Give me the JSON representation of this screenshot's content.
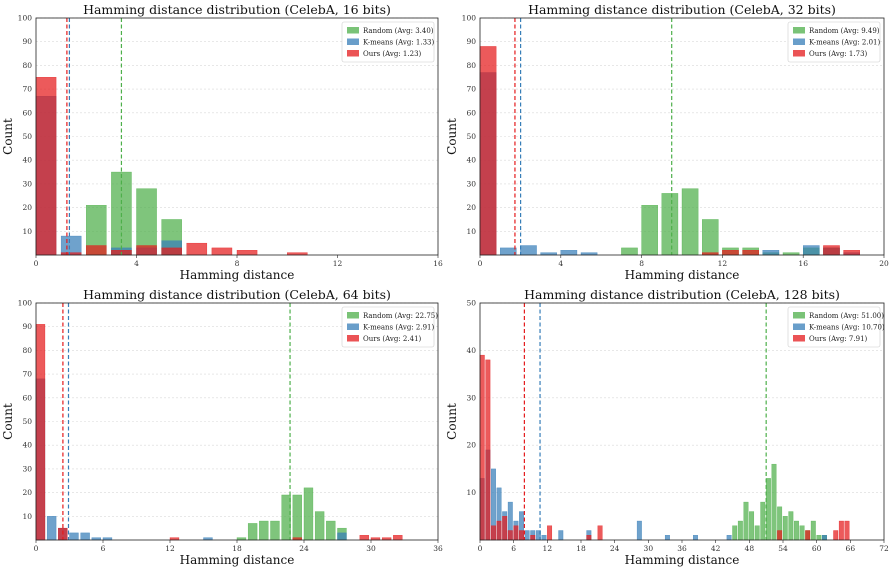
{
  "chart_data": [
    {
      "type": "bar",
      "title": "Hamming distance distribution (CelebA, 16 bits)",
      "xlabel": "Hamming distance",
      "ylabel": "Count",
      "xlim": [
        0,
        16
      ],
      "ylim": [
        0,
        100
      ],
      "xticks": [
        0,
        4,
        8,
        12,
        16
      ],
      "yticks": [
        10,
        20,
        30,
        40,
        50,
        60,
        70,
        80,
        90,
        100
      ],
      "legend_position": "top-right",
      "series": [
        {
          "name": "Random (Avg: 3.40)",
          "color": "#4daf4a",
          "x": [
            3,
            4,
            2,
            5,
            3.5
          ],
          "values": [
            35,
            28,
            21,
            15,
            0
          ],
          "mean": 3.4
        },
        {
          "name": "K-means (Avg: 1.33)",
          "color": "#377eb8",
          "x": [
            0,
            1,
            3,
            4,
            5
          ],
          "values": [
            67,
            8,
            3,
            3,
            6
          ],
          "mean": 1.33
        },
        {
          "name": "Ours (Avg: 1.23)",
          "color": "#e41a1c",
          "x": [
            0,
            1,
            2,
            3,
            4,
            5,
            6,
            7,
            8,
            10
          ],
          "values": [
            75,
            1,
            4,
            2,
            4,
            3,
            5,
            3,
            2,
            1
          ],
          "mean": 1.23
        }
      ]
    },
    {
      "type": "bar",
      "title": "Hamming distance distribution (CelebA, 32 bits)",
      "xlabel": "Hamming distance",
      "ylabel": "Count",
      "xlim": [
        0,
        20
      ],
      "ylim": [
        0,
        100
      ],
      "xticks": [
        0,
        4,
        8,
        12,
        16,
        20
      ],
      "yticks": [
        10,
        20,
        30,
        40,
        50,
        60,
        70,
        80,
        90,
        100
      ],
      "legend_position": "top-right",
      "series": [
        {
          "name": "Random (Avg: 9.49)",
          "color": "#4daf4a",
          "x": [
            7,
            8,
            9,
            10,
            11,
            12,
            13,
            14,
            15,
            16,
            17
          ],
          "values": [
            3,
            21,
            26,
            28,
            15,
            3,
            3,
            1,
            1,
            3,
            3
          ],
          "mean": 9.49
        },
        {
          "name": "K-means (Avg: 2.01)",
          "color": "#377eb8",
          "x": [
            0,
            1,
            2,
            3,
            4,
            5,
            14,
            16,
            17,
            18
          ],
          "values": [
            77,
            3,
            4,
            1,
            2,
            1,
            2,
            4,
            3,
            1
          ],
          "mean": 2.01
        },
        {
          "name": "Ours (Avg: 1.73)",
          "color": "#e41a1c",
          "x": [
            0,
            11,
            12,
            13,
            17,
            18
          ],
          "values": [
            88,
            1,
            2,
            2,
            4,
            2
          ],
          "mean": 1.73
        }
      ]
    },
    {
      "type": "bar",
      "title": "Hamming distance distribution (CelebA, 64 bits)",
      "xlabel": "Hamming distance",
      "ylabel": "Count",
      "xlim": [
        0,
        36
      ],
      "ylim": [
        0,
        100
      ],
      "xticks": [
        0,
        6,
        12,
        18,
        24,
        30,
        36
      ],
      "yticks": [
        10,
        20,
        30,
        40,
        50,
        60,
        70,
        80,
        90,
        100
      ],
      "legend_position": "top-right",
      "series": [
        {
          "name": "Random (Avg: 22.75)",
          "color": "#4daf4a",
          "x": [
            18,
            19,
            20,
            21,
            22,
            23,
            24,
            25,
            26,
            27
          ],
          "values": [
            1,
            7,
            8,
            8,
            19,
            19,
            22,
            12,
            8,
            5
          ],
          "mean": 22.75
        },
        {
          "name": "K-means (Avg: 2.91)",
          "color": "#377eb8",
          "x": [
            0,
            1,
            2,
            3,
            4,
            5,
            6,
            15,
            27
          ],
          "values": [
            68,
            10,
            5,
            3,
            3,
            1,
            1,
            1,
            3
          ],
          "mean": 2.91
        },
        {
          "name": "Ours (Avg: 2.41)",
          "color": "#e41a1c",
          "x": [
            0,
            2,
            12,
            23,
            29,
            30,
            31,
            32
          ],
          "values": [
            91,
            5,
            1,
            1,
            2,
            1,
            1,
            2
          ],
          "mean": 2.41
        }
      ]
    },
    {
      "type": "bar",
      "title": "Hamming distance distribution (CelebA, 128 bits)",
      "xlabel": "Hamming distance",
      "ylabel": "Count",
      "xlim": [
        0,
        72
      ],
      "ylim": [
        0,
        50
      ],
      "xticks": [
        0,
        6,
        12,
        18,
        24,
        30,
        36,
        42,
        48,
        54,
        60,
        66,
        72
      ],
      "yticks": [
        10,
        20,
        30,
        40,
        50
      ],
      "legend_position": "top-right",
      "series": [
        {
          "name": "Random (Avg: 51.00)",
          "color": "#4daf4a",
          "x": [
            45,
            46,
            47,
            48,
            49,
            50,
            51,
            52,
            53,
            54,
            55,
            56,
            57,
            58,
            59,
            60,
            61
          ],
          "values": [
            3,
            4,
            8,
            6,
            3,
            8,
            13,
            16,
            7,
            5,
            6,
            4,
            3,
            2,
            4,
            1,
            1
          ],
          "mean": 51.0
        },
        {
          "name": "K-means (Avg: 10.70)",
          "color": "#377eb8",
          "x": [
            0,
            1,
            2,
            3,
            4,
            5,
            6,
            7,
            8,
            9,
            10,
            11,
            14,
            19,
            28,
            33,
            38,
            44,
            61
          ],
          "values": [
            13,
            19,
            15,
            11,
            6,
            8,
            4,
            6,
            2,
            2,
            2,
            1,
            2,
            2,
            4,
            1,
            1,
            1,
            1
          ],
          "mean": 10.7
        },
        {
          "name": "Ours (Avg: 7.91)",
          "color": "#e41a1c",
          "x": [
            0,
            1,
            2,
            3,
            4,
            5,
            6,
            7,
            9,
            12,
            19,
            21,
            53,
            58,
            63,
            64,
            65
          ],
          "values": [
            39,
            38,
            3,
            4,
            5,
            2,
            3,
            2,
            1,
            3,
            1,
            3,
            2,
            2,
            2,
            4,
            4
          ],
          "mean": 7.91
        }
      ]
    }
  ]
}
